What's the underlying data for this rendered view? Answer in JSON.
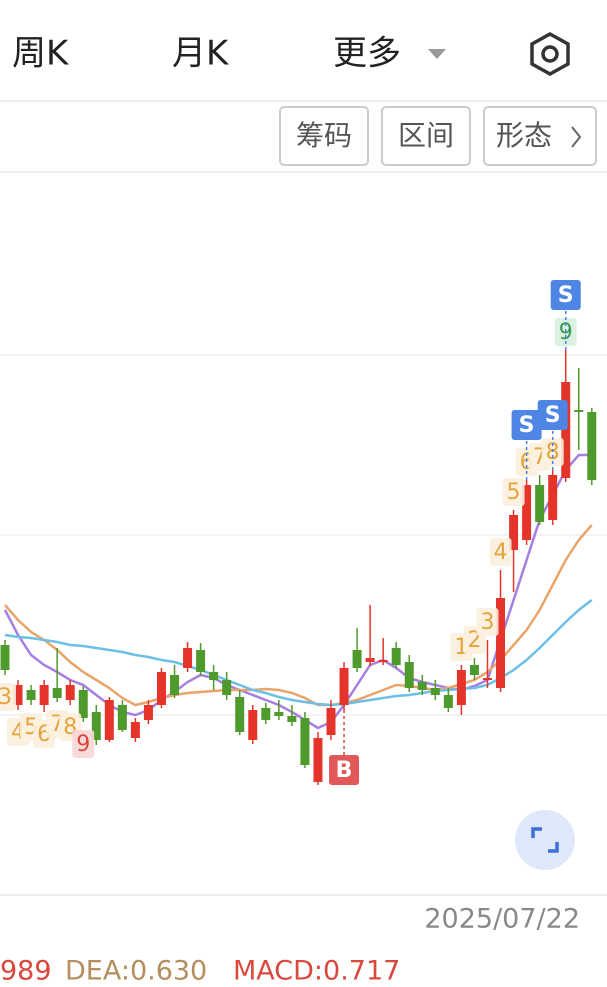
{
  "tabs": [
    "周K",
    "月K",
    "更多"
  ],
  "buttons": [
    "筹码",
    "区间",
    "形态"
  ],
  "chart_data": {
    "type": "candlestick",
    "x_end_label": "2025/07/22",
    "ylim": [
      1.05,
      8.25
    ],
    "up_color": "#e5352b",
    "down_color": "#4f9a2c",
    "open": [
      3.55,
      2.95,
      3.1,
      2.95,
      3.12,
      3.0,
      3.1,
      2.88,
      2.6,
      2.95,
      2.62,
      2.8,
      2.95,
      3.25,
      3.32,
      3.5,
      3.28,
      3.2,
      3.03,
      2.6,
      2.92,
      2.88,
      2.84,
      2.82,
      2.18,
      2.65,
      2.95,
      3.5,
      3.38,
      3.38,
      3.52,
      3.38,
      3.18,
      3.12,
      3.05,
      2.95,
      3.35,
      3.2,
      3.12,
      4.5,
      4.6,
      5.15,
      4.8,
      5.22,
      5.9,
      5.88
    ],
    "high": [
      3.6,
      3.2,
      3.15,
      3.2,
      3.52,
      3.2,
      3.14,
      2.95,
      3.03,
      3.0,
      2.82,
      3.0,
      3.32,
      3.35,
      3.58,
      3.57,
      3.35,
      3.28,
      3.1,
      2.95,
      2.97,
      3.0,
      2.95,
      2.88,
      2.68,
      3.0,
      3.38,
      3.72,
      3.95,
      3.62,
      3.58,
      3.45,
      3.25,
      3.2,
      3.12,
      3.35,
      3.42,
      3.6,
      4.3,
      4.9,
      5.2,
      5.25,
      5.3,
      6.5,
      6.32,
      5.92
    ],
    "low": [
      3.25,
      2.9,
      2.95,
      2.88,
      2.98,
      2.95,
      2.78,
      2.55,
      2.58,
      2.68,
      2.58,
      2.76,
      2.92,
      3.02,
      3.28,
      3.24,
      3.1,
      3.0,
      2.65,
      2.56,
      2.76,
      2.8,
      2.74,
      2.32,
      2.15,
      2.6,
      2.9,
      3.28,
      3.34,
      3.35,
      3.32,
      3.08,
      3.05,
      3.0,
      2.88,
      2.85,
      3.2,
      3.12,
      3.08,
      4.08,
      4.55,
      4.75,
      4.75,
      5.18,
      5.5,
      5.15
    ],
    "close": [
      3.3,
      3.15,
      3.0,
      3.15,
      3.02,
      3.15,
      2.82,
      2.6,
      3.0,
      2.7,
      2.78,
      2.95,
      3.28,
      3.05,
      3.52,
      3.28,
      3.2,
      3.05,
      2.68,
      2.9,
      2.8,
      2.84,
      2.78,
      2.35,
      2.62,
      2.92,
      3.32,
      3.32,
      3.42,
      3.4,
      3.35,
      3.12,
      3.1,
      3.05,
      2.92,
      3.3,
      3.25,
      3.22,
      4.02,
      4.85,
      5.15,
      4.78,
      5.25,
      6.18,
      5.88,
      5.2
    ],
    "series": [
      {
        "color": "#a67fe0",
        "values": [
          3.9,
          3.65,
          3.45,
          3.35,
          3.28,
          3.2,
          3.15,
          3.05,
          2.95,
          2.88,
          2.85,
          2.9,
          3.0,
          3.08,
          3.18,
          3.25,
          3.22,
          3.15,
          3.1,
          3.05,
          3.0,
          2.95,
          2.88,
          2.8,
          2.72,
          2.78,
          2.95,
          3.15,
          3.35,
          3.4,
          3.32,
          3.22,
          3.18,
          3.15,
          3.12,
          3.1,
          3.14,
          3.2,
          3.6,
          4.0,
          4.4,
          4.8,
          5.05,
          5.3,
          5.45,
          5.45
        ]
      },
      {
        "color": "#e9a46a",
        "values": [
          3.95,
          3.8,
          3.68,
          3.6,
          3.5,
          3.38,
          3.28,
          3.2,
          3.12,
          3.02,
          2.95,
          2.98,
          3.02,
          3.05,
          3.07,
          3.08,
          3.09,
          3.1,
          3.1,
          3.1,
          3.11,
          3.1,
          3.07,
          3.02,
          2.95,
          2.95,
          2.97,
          3.0,
          3.05,
          3.1,
          3.15,
          3.14,
          3.12,
          3.1,
          3.12,
          3.16,
          3.2,
          3.28,
          3.4,
          3.55,
          3.7,
          3.9,
          4.15,
          4.4,
          4.6,
          4.75
        ]
      },
      {
        "color": "#6dbfe6",
        "values": [
          3.65,
          3.63,
          3.62,
          3.6,
          3.58,
          3.55,
          3.54,
          3.52,
          3.5,
          3.48,
          3.45,
          3.43,
          3.4,
          3.38,
          3.34,
          3.3,
          3.25,
          3.2,
          3.15,
          3.1,
          3.07,
          3.03,
          3.0,
          2.98,
          2.96,
          2.95,
          2.96,
          2.98,
          3.0,
          3.02,
          3.04,
          3.05,
          3.07,
          3.09,
          3.1,
          3.11,
          3.12,
          3.15,
          3.22,
          3.3,
          3.4,
          3.52,
          3.65,
          3.78,
          3.9,
          4.0
        ]
      }
    ],
    "td_buy_setup": [
      "3",
      "4",
      "5",
      "6",
      "7",
      "8",
      "9",
      null,
      null,
      null,
      null,
      null,
      null,
      null,
      null,
      null,
      null,
      null,
      null,
      null,
      null,
      null,
      null,
      null,
      null,
      null,
      null,
      null,
      null,
      null,
      null,
      null,
      null,
      null,
      null,
      null,
      null,
      null,
      null,
      null,
      null,
      null,
      null,
      null,
      null,
      null
    ],
    "td_sell_setup": [
      null,
      null,
      null,
      null,
      null,
      null,
      null,
      null,
      null,
      null,
      null,
      null,
      null,
      null,
      null,
      null,
      null,
      null,
      null,
      null,
      null,
      null,
      null,
      null,
      null,
      null,
      null,
      null,
      null,
      null,
      null,
      null,
      null,
      null,
      null,
      "1",
      "2",
      "3",
      "4",
      "5",
      "6",
      "7",
      "8",
      "9",
      null,
      null
    ],
    "signals": [
      null,
      null,
      null,
      null,
      null,
      null,
      null,
      null,
      null,
      null,
      null,
      null,
      null,
      null,
      null,
      null,
      null,
      null,
      null,
      null,
      null,
      null,
      null,
      null,
      null,
      null,
      "B",
      null,
      null,
      null,
      null,
      null,
      null,
      null,
      null,
      null,
      null,
      null,
      null,
      null,
      "S",
      null,
      "S",
      "S",
      null,
      null
    ]
  },
  "indicators": [
    "989",
    "DEA:0.630",
    "MACD:0.717"
  ]
}
